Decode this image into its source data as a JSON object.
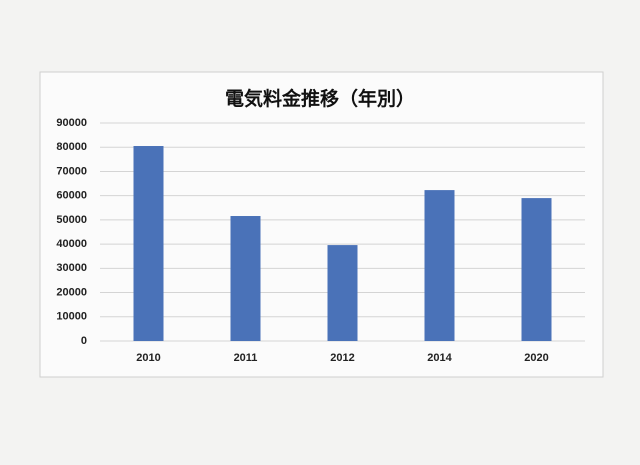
{
  "chart_data": {
    "type": "bar",
    "title": "電気料金推移（年別）",
    "categories": [
      "2010",
      "2011",
      "2012",
      "2014",
      "2020"
    ],
    "values": [
      80500,
      51600,
      39600,
      62300,
      59000
    ],
    "color": "#4a72b8",
    "ylim": [
      0,
      90000
    ],
    "yticks": [
      0,
      10000,
      20000,
      30000,
      40000,
      50000,
      60000,
      70000,
      80000,
      90000
    ],
    "grid": true
  }
}
